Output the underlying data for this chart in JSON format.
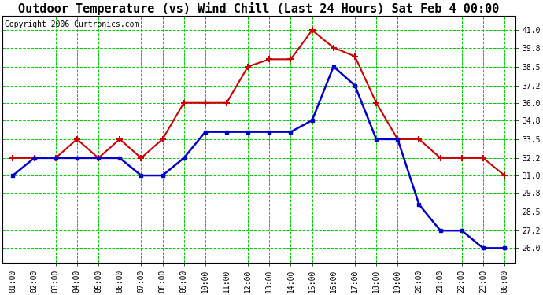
{
  "title": "Outdoor Temperature (vs) Wind Chill (Last 24 Hours) Sat Feb 4 00:00",
  "copyright": "Copyright 2006 Curtronics.com",
  "x_labels": [
    "01:00",
    "02:00",
    "03:00",
    "04:00",
    "05:00",
    "06:00",
    "07:00",
    "08:00",
    "09:00",
    "10:00",
    "11:00",
    "12:00",
    "13:00",
    "14:00",
    "15:00",
    "16:00",
    "17:00",
    "18:00",
    "19:00",
    "20:00",
    "21:00",
    "22:00",
    "23:00",
    "00:00"
  ],
  "temp_red": [
    32.2,
    32.2,
    32.2,
    33.5,
    32.2,
    33.5,
    32.2,
    33.5,
    36.0,
    36.0,
    36.0,
    38.5,
    39.0,
    39.0,
    41.0,
    39.8,
    39.2,
    36.0,
    33.5,
    33.5,
    32.2,
    32.2,
    32.2,
    31.0
  ],
  "temp_blue": [
    31.0,
    32.2,
    32.2,
    32.2,
    32.2,
    32.2,
    31.0,
    31.0,
    32.2,
    34.0,
    34.0,
    34.0,
    34.0,
    34.0,
    34.8,
    38.5,
    37.2,
    33.5,
    33.5,
    29.0,
    27.2,
    27.2,
    26.0,
    26.0
  ],
  "ylim": [
    25.0,
    42.0
  ],
  "yticks": [
    26.0,
    27.2,
    28.5,
    29.8,
    31.0,
    32.2,
    33.5,
    34.8,
    36.0,
    37.2,
    38.5,
    39.8,
    41.0
  ],
  "red_color": "#cc0000",
  "blue_color": "#0000cc",
  "bg_color": "#ffffff",
  "grid_color": "#00cc00",
  "title_fontsize": 11,
  "copyright_fontsize": 7,
  "tick_fontsize": 7
}
